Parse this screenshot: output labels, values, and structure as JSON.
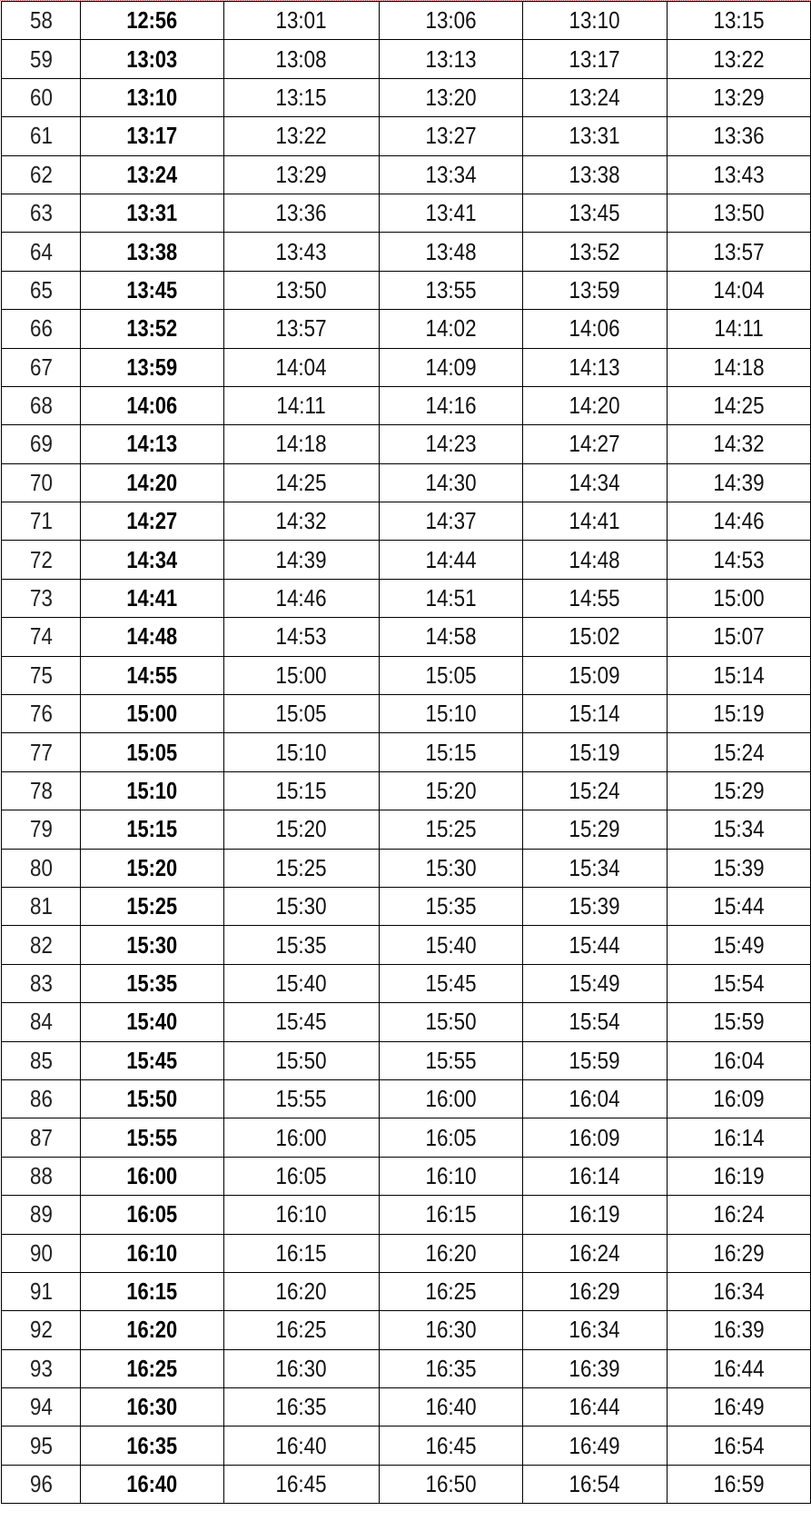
{
  "table": {
    "rows": [
      [
        "58",
        "12:56",
        "13:01",
        "13:06",
        "13:10",
        "13:15"
      ],
      [
        "59",
        "13:03",
        "13:08",
        "13:13",
        "13:17",
        "13:22"
      ],
      [
        "60",
        "13:10",
        "13:15",
        "13:20",
        "13:24",
        "13:29"
      ],
      [
        "61",
        "13:17",
        "13:22",
        "13:27",
        "13:31",
        "13:36"
      ],
      [
        "62",
        "13:24",
        "13:29",
        "13:34",
        "13:38",
        "13:43"
      ],
      [
        "63",
        "13:31",
        "13:36",
        "13:41",
        "13:45",
        "13:50"
      ],
      [
        "64",
        "13:38",
        "13:43",
        "13:48",
        "13:52",
        "13:57"
      ],
      [
        "65",
        "13:45",
        "13:50",
        "13:55",
        "13:59",
        "14:04"
      ],
      [
        "66",
        "13:52",
        "13:57",
        "14:02",
        "14:06",
        "14:11"
      ],
      [
        "67",
        "13:59",
        "14:04",
        "14:09",
        "14:13",
        "14:18"
      ],
      [
        "68",
        "14:06",
        "14:11",
        "14:16",
        "14:20",
        "14:25"
      ],
      [
        "69",
        "14:13",
        "14:18",
        "14:23",
        "14:27",
        "14:32"
      ],
      [
        "70",
        "14:20",
        "14:25",
        "14:30",
        "14:34",
        "14:39"
      ],
      [
        "71",
        "14:27",
        "14:32",
        "14:37",
        "14:41",
        "14:46"
      ],
      [
        "72",
        "14:34",
        "14:39",
        "14:44",
        "14:48",
        "14:53"
      ],
      [
        "73",
        "14:41",
        "14:46",
        "14:51",
        "14:55",
        "15:00"
      ],
      [
        "74",
        "14:48",
        "14:53",
        "14:58",
        "15:02",
        "15:07"
      ],
      [
        "75",
        "14:55",
        "15:00",
        "15:05",
        "15:09",
        "15:14"
      ],
      [
        "76",
        "15:00",
        "15:05",
        "15:10",
        "15:14",
        "15:19"
      ],
      [
        "77",
        "15:05",
        "15:10",
        "15:15",
        "15:19",
        "15:24"
      ],
      [
        "78",
        "15:10",
        "15:15",
        "15:20",
        "15:24",
        "15:29"
      ],
      [
        "79",
        "15:15",
        "15:20",
        "15:25",
        "15:29",
        "15:34"
      ],
      [
        "80",
        "15:20",
        "15:25",
        "15:30",
        "15:34",
        "15:39"
      ],
      [
        "81",
        "15:25",
        "15:30",
        "15:35",
        "15:39",
        "15:44"
      ],
      [
        "82",
        "15:30",
        "15:35",
        "15:40",
        "15:44",
        "15:49"
      ],
      [
        "83",
        "15:35",
        "15:40",
        "15:45",
        "15:49",
        "15:54"
      ],
      [
        "84",
        "15:40",
        "15:45",
        "15:50",
        "15:54",
        "15:59"
      ],
      [
        "85",
        "15:45",
        "15:50",
        "15:55",
        "15:59",
        "16:04"
      ],
      [
        "86",
        "15:50",
        "15:55",
        "16:00",
        "16:04",
        "16:09"
      ],
      [
        "87",
        "15:55",
        "16:00",
        "16:05",
        "16:09",
        "16:14"
      ],
      [
        "88",
        "16:00",
        "16:05",
        "16:10",
        "16:14",
        "16:19"
      ],
      [
        "89",
        "16:05",
        "16:10",
        "16:15",
        "16:19",
        "16:24"
      ],
      [
        "90",
        "16:10",
        "16:15",
        "16:20",
        "16:24",
        "16:29"
      ],
      [
        "91",
        "16:15",
        "16:20",
        "16:25",
        "16:29",
        "16:34"
      ],
      [
        "92",
        "16:20",
        "16:25",
        "16:30",
        "16:34",
        "16:39"
      ],
      [
        "93",
        "16:25",
        "16:30",
        "16:35",
        "16:39",
        "16:44"
      ],
      [
        "94",
        "16:30",
        "16:35",
        "16:40",
        "16:44",
        "16:49"
      ],
      [
        "95",
        "16:35",
        "16:40",
        "16:45",
        "16:49",
        "16:54"
      ],
      [
        "96",
        "16:40",
        "16:45",
        "16:50",
        "16:54",
        "16:59"
      ]
    ]
  }
}
